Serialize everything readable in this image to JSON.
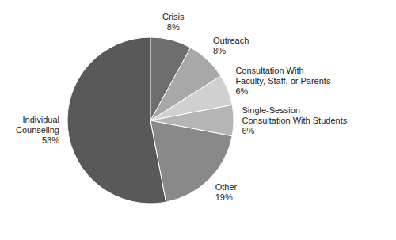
{
  "chart_data": {
    "type": "pie",
    "categories": [
      "Individual\nCounseling",
      "Other",
      "Single-Session\nConsultation With Students",
      "Consultation With\nFaculty, Staff, or Parents",
      "Outreach",
      "Crisis"
    ],
    "values": [
      53,
      19,
      6,
      6,
      8,
      8
    ],
    "value_labels": [
      "53%",
      "19%",
      "6%",
      "6%",
      "8%",
      "8%"
    ],
    "data_labels": true,
    "colors": [
      "#595959",
      "#898989",
      "#b5b5b5",
      "#d0d0d0",
      "#a8a8a8",
      "#6e6e6e"
    ]
  }
}
